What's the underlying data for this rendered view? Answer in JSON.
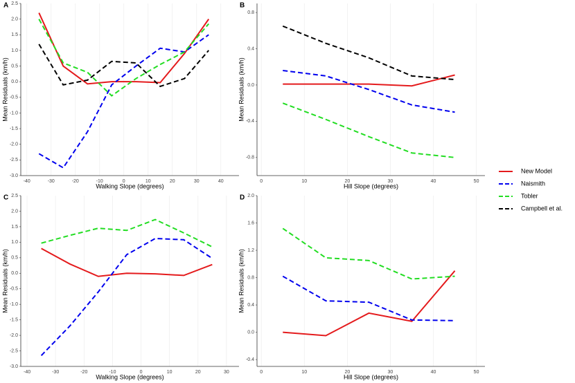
{
  "chart_data": [
    {
      "type": "line",
      "panel": "A",
      "xlabel": "Walking Slope (degrees)",
      "ylabel": "Mean Residuals (km/h)",
      "x": [
        -35,
        -25,
        -15,
        -5,
        5,
        15,
        25,
        35
      ],
      "series": [
        {
          "name": "New Model",
          "color": "#e41a1c",
          "dash": "solid",
          "values": [
            2.2,
            0.5,
            -0.07,
            0.0,
            0.0,
            -0.03,
            0.9,
            2.0
          ]
        },
        {
          "name": "Naismith",
          "color": "#0000ee",
          "dash": "dashed",
          "values": [
            -2.3,
            -2.75,
            -1.6,
            -0.1,
            0.5,
            1.07,
            0.95,
            1.5
          ]
        },
        {
          "name": "Tobler",
          "color": "#22dd22",
          "dash": "dashed",
          "values": [
            2.0,
            0.6,
            0.3,
            -0.45,
            0.1,
            0.55,
            0.95,
            1.85
          ]
        },
        {
          "name": "Campbell et al.",
          "color": "#000000",
          "dash": "dashed",
          "values": [
            1.2,
            -0.1,
            0.05,
            0.65,
            0.6,
            -0.15,
            0.1,
            1.0
          ]
        }
      ],
      "xlim": [
        -42.5,
        47.5
      ],
      "ylim": [
        -3.0,
        2.5
      ],
      "xticks": [
        -40,
        -30,
        -20,
        -10,
        0,
        10,
        20,
        30,
        40
      ],
      "yticks": [
        {
          "value": -3.0,
          "label": "-3.0"
        },
        -2.5,
        {
          "value": -2.0,
          "label": "-2.0"
        },
        -1.5,
        {
          "value": -1.0,
          "label": "-1.0"
        },
        -0.5,
        {
          "value": 0.0,
          "label": "0.0"
        },
        0.5,
        {
          "value": 1.0,
          "label": "1.0"
        },
        1.5,
        {
          "value": 2.0,
          "label": "2.0"
        },
        2.5
      ],
      "grid": true
    },
    {
      "type": "line",
      "panel": "B",
      "xlabel": "Hill Slope (degrees)",
      "ylabel": "Mean Residuals (km/h)",
      "x": [
        5,
        15,
        25,
        35,
        45
      ],
      "series": [
        {
          "name": "New Model",
          "color": "#e41a1c",
          "dash": "solid",
          "values": [
            0.01,
            0.01,
            0.01,
            -0.01,
            0.11
          ]
        },
        {
          "name": "Naismith",
          "color": "#0000ee",
          "dash": "dashed",
          "values": [
            0.16,
            0.1,
            -0.05,
            -0.22,
            -0.3
          ]
        },
        {
          "name": "Tobler",
          "color": "#22dd22",
          "dash": "dashed",
          "values": [
            -0.2,
            -0.38,
            -0.57,
            -0.75,
            -0.8
          ]
        },
        {
          "name": "Campbell et al.",
          "color": "#000000",
          "dash": "dashed",
          "values": [
            0.65,
            0.46,
            0.3,
            0.1,
            0.06
          ]
        }
      ],
      "xlim": [
        -1,
        52
      ],
      "ylim": [
        -1.0,
        0.9
      ],
      "xticks": [
        0,
        10,
        20,
        30,
        40,
        50
      ],
      "yticks": [
        -0.8,
        -0.4,
        {
          "value": 0.0,
          "label": "0.0"
        },
        0.4,
        0.8
      ],
      "grid": true
    },
    {
      "type": "line",
      "panel": "C",
      "xlabel": "Walking Slope (degrees)",
      "ylabel": "Mean Residuals (km/h)",
      "x": [
        -35,
        -25,
        -15,
        -5,
        5,
        15,
        25
      ],
      "series": [
        {
          "name": "New Model",
          "color": "#e41a1c",
          "dash": "solid",
          "values": [
            0.8,
            0.3,
            -0.1,
            0.0,
            -0.02,
            -0.07,
            0.28
          ]
        },
        {
          "name": "Naismith",
          "color": "#0000ee",
          "dash": "dashed",
          "values": [
            -2.65,
            -1.7,
            -0.6,
            0.6,
            1.12,
            1.08,
            0.48
          ]
        },
        {
          "name": "Tobler",
          "color": "#22dd22",
          "dash": "dashed",
          "values": [
            0.97,
            1.22,
            1.45,
            1.38,
            1.73,
            1.3,
            0.85
          ]
        }
      ],
      "xlim": [
        -42.2,
        34.4
      ],
      "ylim": [
        -3.0,
        2.5
      ],
      "xticks": [
        -40,
        -30,
        -20,
        -10,
        0,
        10,
        20,
        30
      ],
      "yticks": [
        {
          "value": -3.0,
          "label": "-3.0"
        },
        -2.5,
        {
          "value": -2.0,
          "label": "-2.0"
        },
        -1.5,
        {
          "value": -1.0,
          "label": "-1.0"
        },
        -0.5,
        {
          "value": 0.0,
          "label": "0.0"
        },
        0.5,
        {
          "value": 1.0,
          "label": "1.0"
        },
        1.5,
        {
          "value": 2.0,
          "label": "2.0"
        },
        2.5
      ],
      "grid": true
    },
    {
      "type": "line",
      "panel": "D",
      "xlabel": "Hill Slope (degrees)",
      "ylabel": "Mean Residuals (km/h)",
      "x": [
        5,
        15,
        25,
        35,
        45
      ],
      "series": [
        {
          "name": "New Model",
          "color": "#e41a1c",
          "dash": "solid",
          "values": [
            0.0,
            -0.05,
            0.28,
            0.16,
            0.9
          ]
        },
        {
          "name": "Naismith",
          "color": "#0000ee",
          "dash": "dashed",
          "values": [
            0.82,
            0.46,
            0.44,
            0.18,
            0.17
          ]
        },
        {
          "name": "Tobler",
          "color": "#22dd22",
          "dash": "dashed",
          "values": [
            1.52,
            1.09,
            1.05,
            0.78,
            0.82
          ]
        }
      ],
      "xlim": [
        -1,
        52
      ],
      "ylim": [
        -0.5,
        2.0
      ],
      "xticks": [
        0,
        10,
        20,
        30,
        40,
        50
      ],
      "yticks": [
        -0.4,
        {
          "value": 0.0,
          "label": "0.0"
        },
        0.4,
        0.8,
        1.2,
        1.6,
        {
          "value": 2.0,
          "label": "2.0"
        }
      ],
      "grid": true
    }
  ]
}
